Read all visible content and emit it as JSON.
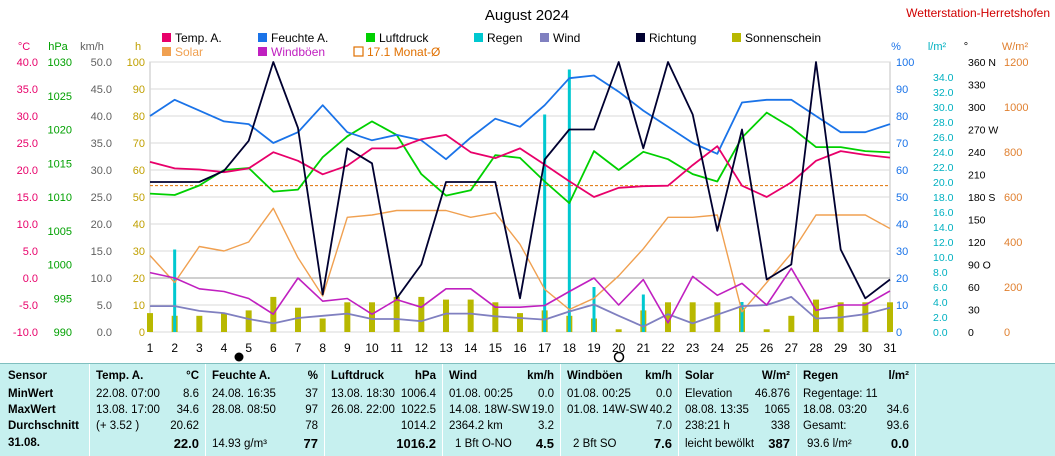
{
  "station": "Wetterstation-Herretshofen",
  "chart_data": {
    "type": "line",
    "title": "August 2024",
    "x": [
      1,
      2,
      3,
      4,
      5,
      6,
      7,
      8,
      9,
      10,
      11,
      12,
      13,
      14,
      15,
      16,
      17,
      18,
      19,
      20,
      21,
      22,
      23,
      24,
      25,
      26,
      27,
      28,
      29,
      30,
      31
    ],
    "legend": [
      {
        "name": "Temp. A.",
        "color": "#e8006a"
      },
      {
        "name": "Feuchte A.",
        "color": "#1a73e8"
      },
      {
        "name": "Luftdruck",
        "color": "#00d000"
      },
      {
        "name": "Regen",
        "color": "#00c8d0"
      },
      {
        "name": "Wind",
        "color": "#8080c0"
      },
      {
        "name": "Richtung",
        "color": "#000030"
      },
      {
        "name": "Sonnenschein",
        "color": "#b8b800"
      },
      {
        "name": "Solar",
        "color": "#f0a050"
      },
      {
        "name": "Windböen",
        "color": "#c020c0"
      },
      {
        "name": "17.1 Monat-Ø",
        "color": "#e07000"
      }
    ],
    "axes": {
      "temp": {
        "label": "°C",
        "color": "#e8006a",
        "min": -10,
        "max": 40,
        "ticks": [
          "40.0",
          "35.0",
          "30.0",
          "25.0",
          "20.0",
          "15.0",
          "10.0",
          "5.0",
          "0.0",
          "-5.0",
          "-10.0"
        ]
      },
      "press": {
        "label": "hPa",
        "color": "#00a000",
        "min": 990,
        "max": 1030,
        "ticks": [
          "1030",
          "1025",
          "1020",
          "1015",
          "1010",
          "1005",
          "1000",
          "995",
          "990"
        ]
      },
      "wind": {
        "label": "km/h",
        "color": "#606060",
        "min": 0,
        "max": 50,
        "ticks": [
          "50.0",
          "45.0",
          "40.0",
          "35.0",
          "30.0",
          "25.0",
          "20.0",
          "15.0",
          "10.0",
          "5.0",
          "0.0"
        ]
      },
      "sun": {
        "label": "h",
        "color": "#c0a000",
        "min": 0,
        "max": 100,
        "ticks": [
          "100",
          "90",
          "80",
          "70",
          "60",
          "50",
          "40",
          "30",
          "20",
          "10",
          "0"
        ]
      },
      "hum": {
        "label": "%",
        "color": "#1a73e8",
        "min": 0,
        "max": 100,
        "ticks": [
          "100",
          "90",
          "80",
          "70",
          "60",
          "50",
          "40",
          "30",
          "20",
          "10",
          "0"
        ]
      },
      "rain": {
        "label": "l/m²",
        "color": "#00b0c0",
        "min": 0,
        "max": 36,
        "ticks": [
          "34.0",
          "32.0",
          "30.0",
          "28.0",
          "26.0",
          "24.0",
          "22.0",
          "20.0",
          "18.0",
          "16.0",
          "14.0",
          "12.0",
          "10.0",
          "8.0",
          "6.0",
          "4.0",
          "2.0",
          "0.0"
        ]
      },
      "dir": {
        "label": "°",
        "color": "#000000",
        "min": 0,
        "max": 360,
        "ticks": [
          "360 N",
          "330",
          "300",
          "270 W",
          "240",
          "210",
          "180 S",
          "150",
          "120",
          "90  O",
          "60",
          "30",
          "0"
        ]
      },
      "solar": {
        "label": "W/m²",
        "color": "#e08030",
        "min": 0,
        "max": 1200,
        "ticks": [
          "1200",
          "1000",
          "800",
          "600",
          "400",
          "200",
          "0"
        ]
      }
    },
    "series": {
      "temp": [
        21.5,
        20.3,
        20.1,
        19.6,
        20.3,
        23.3,
        21.7,
        19.2,
        20.8,
        24.0,
        24.0,
        25.7,
        26.5,
        23.3,
        22.2,
        24.0,
        21.0,
        17.9,
        15.0,
        16.7,
        17.0,
        17.1,
        20.9,
        24.4,
        17.1,
        15.0,
        17.7,
        21.7,
        23.5,
        22.8,
        22.3
      ],
      "humidity": [
        80,
        86,
        82,
        78,
        77,
        70,
        74,
        84,
        74,
        71,
        73,
        71,
        64,
        72,
        79,
        76,
        84,
        94,
        95,
        89,
        82,
        76,
        70,
        66,
        85,
        86,
        86,
        80,
        74,
        74,
        77
      ],
      "pressure": [
        1010.5,
        1010.3,
        1011.7,
        1014.0,
        1014.3,
        1010.8,
        1011.1,
        1015.9,
        1019.0,
        1021.2,
        1019.2,
        1013.4,
        1010.2,
        1011.0,
        1016.2,
        1015.8,
        1012.3,
        1009.1,
        1016.8,
        1014.0,
        1016.7,
        1015.6,
        1013.4,
        1012.3,
        1018.8,
        1022.5,
        1020.3,
        1017.4,
        1017.4,
        1016.8,
        1016.6
      ],
      "wind": [
        4.8,
        4.8,
        3.9,
        3.5,
        2.4,
        1.6,
        2.6,
        3.0,
        3.4,
        2.4,
        2.4,
        2.0,
        3.4,
        3.4,
        2.9,
        2.6,
        2.3,
        3.8,
        5.1,
        3.0,
        1.0,
        3.3,
        1.6,
        3.2,
        4.8,
        5.0,
        6.5,
        2.5,
        2.7,
        3.3,
        4.5
      ],
      "gusts": [
        11.0,
        10.0,
        8.0,
        7.5,
        6.2,
        3.3,
        10.0,
        5.7,
        6.2,
        3.3,
        6.0,
        4.6,
        8.0,
        8.0,
        4.6,
        4.6,
        4.9,
        7.5,
        10.0,
        5.0,
        9.7,
        1.7,
        10.3,
        6.8,
        9.0,
        5.0,
        11.8,
        4.0,
        5.0,
        5.0,
        7.6
      ],
      "direction": [
        200,
        200,
        200,
        215,
        255,
        360,
        272,
        50,
        245,
        225,
        45,
        90,
        200,
        200,
        200,
        45,
        230,
        270,
        270,
        360,
        245,
        360,
        290,
        135,
        270,
        70,
        90,
        360,
        110,
        45,
        70
      ],
      "rain": [
        0,
        11,
        0,
        0,
        0,
        0,
        0,
        0,
        0,
        0,
        0,
        0,
        0,
        0,
        0,
        0,
        29,
        35,
        6,
        0,
        5,
        0,
        0,
        0,
        4,
        0,
        0,
        0,
        0,
        0,
        0
      ],
      "solar": [
        340,
        220,
        380,
        360,
        400,
        550,
        330,
        160,
        510,
        520,
        540,
        540,
        540,
        510,
        530,
        390,
        190,
        100,
        150,
        250,
        370,
        510,
        510,
        520,
        90,
        220,
        350,
        520,
        520,
        520,
        460
      ],
      "sunshine": [
        7,
        6,
        6,
        7,
        8,
        13,
        9,
        5,
        11,
        11,
        13,
        13,
        12,
        12,
        11,
        7,
        8,
        6,
        5,
        1,
        8,
        11,
        11,
        11,
        9,
        1,
        6,
        12,
        11,
        11,
        11
      ],
      "month_avg_temp": 17.1
    }
  },
  "table": {
    "sensor": {
      "h": "Sensor",
      "r1": "MinWert",
      "r2": "MaxWert",
      "r3": "Durchschnitt",
      "r4": "31.08."
    },
    "temp": {
      "h": "Temp. A.",
      "u": "°C",
      "r1a": "22.08.  07:00",
      "r1b": "8.6",
      "r2a": "13.08.  17:00",
      "r2b": "34.6",
      "r3a": "(+ 3.52 )",
      "r3b": "20.62",
      "r4b": "22.0"
    },
    "hum": {
      "h": "Feuchte A.",
      "u": "%",
      "r1a": "24.08.  16:35",
      "r1b": "37",
      "r2a": "28.08.  08:50",
      "r2b": "97",
      "r3b": "78",
      "r4a": "14.93 g/m³",
      "r4b": "77"
    },
    "press": {
      "h": "Luftdruck",
      "u": "hPa",
      "r1a": "13.08.  18:30",
      "r1b": "1006.4",
      "r2a": "26.08.  22:00",
      "r2b": "1022.5",
      "r3b": "1014.2",
      "r4b": "1016.2"
    },
    "wind": {
      "h": "Wind",
      "u": "km/h",
      "r1a": "01.08.  00:25",
      "r1b": "0.0",
      "r2a": "14.08.   18W-SW",
      "r2b": "19.0",
      "r3a": "2364.2 km",
      "r3b": "3.2",
      "r4a": "1 Bft O-NO",
      "r4b": "4.5"
    },
    "gust": {
      "h": "Windböen",
      "u": "km/h",
      "r1a": "01.08.  00:25",
      "r1b": "0.0",
      "r2a": "01.08.   14W-SW",
      "r2b": "40.2",
      "r3b": "7.0",
      "r4a": "2 Bft SO",
      "r4b": "7.6"
    },
    "solar": {
      "h": "Solar",
      "u": "W/m²",
      "r1a": "Elevation",
      "r1b": "46.876",
      "r2a": "08.08.  13:35",
      "r2b": "1065",
      "r3a": "238:21 h",
      "r3b": "338",
      "r4a": "leicht bewölkt",
      "r4b": "387"
    },
    "rain": {
      "h": "Regen",
      "u": "l/m²",
      "r1a": "Regentage: 11",
      "r2a": "18.08.  03:20",
      "r2b": "34.6",
      "r3a": "Gesamt:",
      "r3b": "93.6",
      "r4a": "93.6 l/m²",
      "r4b": "0.0"
    }
  }
}
